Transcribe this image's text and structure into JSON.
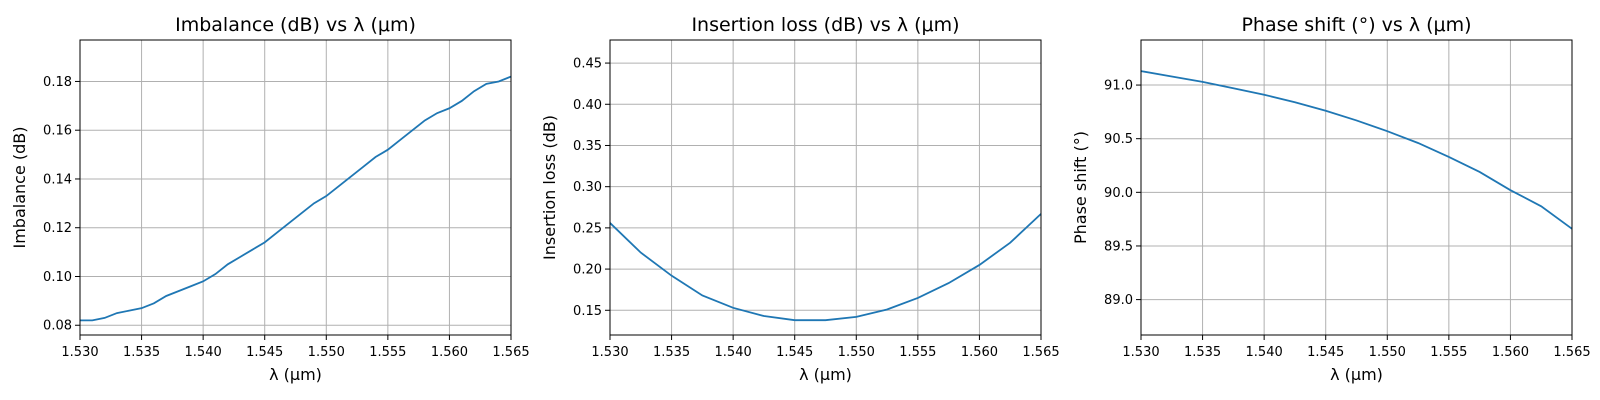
{
  "chart_data": [
    {
      "type": "line",
      "title": "Imbalance (dB) vs λ (μm)",
      "xlabel": "λ (μm)",
      "ylabel": "Imbalance (dB)",
      "xlim": [
        1.53,
        1.565
      ],
      "ylim": [
        0.076,
        0.197
      ],
      "xticks": [
        1.53,
        1.535,
        1.54,
        1.545,
        1.55,
        1.555,
        1.56,
        1.565
      ],
      "xtick_labels": [
        "1.530",
        "1.535",
        "1.540",
        "1.545",
        "1.550",
        "1.555",
        "1.560",
        "1.565"
      ],
      "yticks": [
        0.08,
        0.1,
        0.12,
        0.14,
        0.16,
        0.18
      ],
      "ytick_labels": [
        "0.08",
        "0.10",
        "0.12",
        "0.14",
        "0.16",
        "0.18"
      ],
      "grid": true,
      "color": "#1f77b4",
      "x": [
        1.53,
        1.531,
        1.532,
        1.533,
        1.534,
        1.535,
        1.536,
        1.537,
        1.538,
        1.539,
        1.54,
        1.541,
        1.542,
        1.543,
        1.544,
        1.545,
        1.546,
        1.547,
        1.548,
        1.549,
        1.55,
        1.551,
        1.552,
        1.553,
        1.554,
        1.555,
        1.556,
        1.557,
        1.558,
        1.559,
        1.56,
        1.561,
        1.562,
        1.563,
        1.564,
        1.565
      ],
      "y": [
        0.082,
        0.082,
        0.083,
        0.085,
        0.086,
        0.087,
        0.089,
        0.092,
        0.094,
        0.096,
        0.098,
        0.101,
        0.105,
        0.108,
        0.111,
        0.114,
        0.118,
        0.122,
        0.126,
        0.13,
        0.133,
        0.137,
        0.141,
        0.145,
        0.149,
        0.152,
        0.156,
        0.16,
        0.164,
        0.167,
        0.169,
        0.172,
        0.176,
        0.179,
        0.18,
        0.182
      ]
    },
    {
      "type": "line",
      "title": "Insertion loss (dB) vs λ (μm)",
      "xlabel": "λ (μm)",
      "ylabel": "Insertion loss (dB)",
      "xlim": [
        1.53,
        1.565
      ],
      "ylim": [
        0.12,
        0.478
      ],
      "xticks": [
        1.53,
        1.535,
        1.54,
        1.545,
        1.55,
        1.555,
        1.56,
        1.565
      ],
      "xtick_labels": [
        "1.530",
        "1.535",
        "1.540",
        "1.545",
        "1.550",
        "1.555",
        "1.560",
        "1.565"
      ],
      "yticks": [
        0.15,
        0.2,
        0.25,
        0.3,
        0.35,
        0.4,
        0.45
      ],
      "ytick_labels": [
        "0.15",
        "0.20",
        "0.25",
        "0.30",
        "0.35",
        "0.40",
        "0.45"
      ],
      "grid": true,
      "color": "#1f77b4",
      "x": [
        1.53,
        1.5325,
        1.535,
        1.5375,
        1.54,
        1.5425,
        1.545,
        1.5475,
        1.55,
        1.5525,
        1.555,
        1.5575,
        1.56,
        1.5625,
        1.565
      ],
      "y": [
        0.256,
        0.22,
        0.192,
        0.168,
        0.153,
        0.143,
        0.138,
        0.138,
        0.142,
        0.151,
        0.165,
        0.183,
        0.205,
        0.232,
        0.267
      ]
    },
    {
      "type": "line",
      "title": "Phase shift (°) vs λ (μm)",
      "xlabel": "λ (μm)",
      "ylabel": "Phase shift (°)",
      "xlim": [
        1.53,
        1.565
      ],
      "ylim": [
        88.67,
        91.42
      ],
      "xticks": [
        1.53,
        1.535,
        1.54,
        1.545,
        1.55,
        1.555,
        1.56,
        1.565
      ],
      "xtick_labels": [
        "1.530",
        "1.535",
        "1.540",
        "1.545",
        "1.550",
        "1.555",
        "1.560",
        "1.565"
      ],
      "yticks": [
        89.0,
        89.5,
        90.0,
        90.5,
        91.0
      ],
      "ytick_labels": [
        "89.0",
        "89.5",
        "90.0",
        "90.5",
        "91.0"
      ],
      "grid": true,
      "color": "#1f77b4",
      "x": [
        1.53,
        1.5325,
        1.535,
        1.5375,
        1.54,
        1.5425,
        1.545,
        1.5475,
        1.55,
        1.5525,
        1.555,
        1.5575,
        1.56,
        1.5625,
        1.565
      ],
      "y": [
        91.13,
        91.08,
        91.03,
        90.97,
        90.91,
        90.84,
        90.76,
        90.67,
        90.57,
        90.46,
        90.33,
        90.19,
        90.02,
        89.87,
        89.66
      ]
    }
  ]
}
